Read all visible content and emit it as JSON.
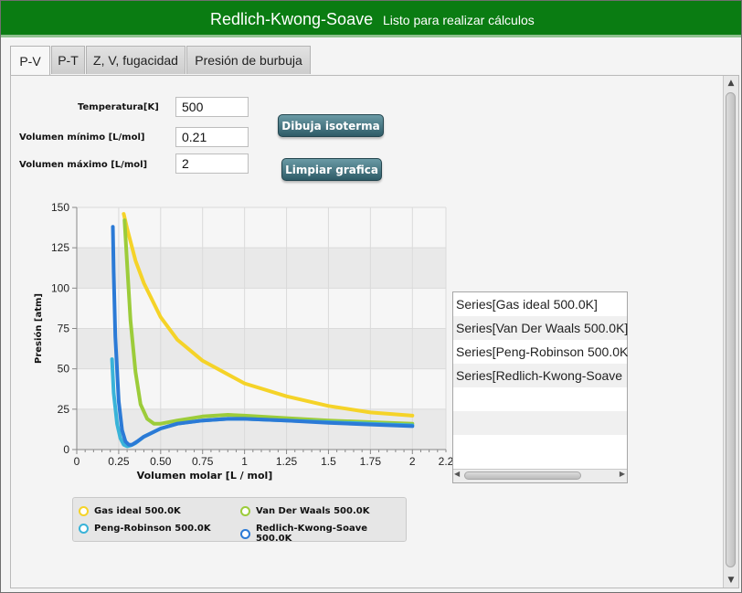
{
  "window": {
    "title": "Redlich-Kwong-Soave",
    "status": "Listo para realizar cálculos"
  },
  "tabs": [
    {
      "label": "P-V",
      "active": true
    },
    {
      "label": "P-T"
    },
    {
      "label": "Z, V, fugacidad"
    },
    {
      "label": "Presión de burbuja"
    }
  ],
  "form": {
    "temperature_label": "Temperatura[K]",
    "temperature_value": "500",
    "vmin_label": "Volumen mínimo [L/mol]",
    "vmin_value": "0.21",
    "vmax_label": "Volumen máximo [L/mol]",
    "vmax_value": "2",
    "draw_button": "Dibuja isoterma",
    "clear_button": "Limpiar grafica"
  },
  "series_list": [
    "Series[Gas ideal 500.0K]",
    "Series[Van Der Waals 500.0K]",
    "Series[Peng-Robinson 500.0K",
    "Series[Redlich-Kwong-Soave"
  ],
  "colors": {
    "ideal": "#f5d328",
    "vdw": "#9ccc3a",
    "pr": "#39b3d8",
    "rks": "#2b7ad6",
    "titlebar": "#0a7c12"
  },
  "chart_data": {
    "type": "line",
    "xlabel": "Volumen molar [L / mol]",
    "ylabel": "Presión [atm]",
    "xlim": [
      0,
      2.2
    ],
    "ylim": [
      0,
      150
    ],
    "xticks": [
      "0",
      "0.25",
      "0.50",
      "0.75",
      "1",
      "1.25",
      "1.5",
      "1.75",
      "2",
      "2.2"
    ],
    "xtick_values": [
      0,
      0.25,
      0.5,
      0.75,
      1,
      1.25,
      1.5,
      1.75,
      2,
      2.2
    ],
    "yticks": [
      "0",
      "25",
      "50",
      "75",
      "100",
      "125",
      "150"
    ],
    "ytick_values": [
      0,
      25,
      50,
      75,
      100,
      125,
      150
    ],
    "grid": true,
    "legend_position": "bottom",
    "series": [
      {
        "name": "Gas ideal 500.0K",
        "color": "#f5d328",
        "x": [
          0.28,
          0.3,
          0.35,
          0.4,
          0.5,
          0.6,
          0.75,
          1.0,
          1.25,
          1.5,
          1.75,
          2.0
        ],
        "y": [
          146,
          137,
          117,
          103,
          82,
          68,
          55,
          41,
          33,
          27,
          23,
          21
        ]
      },
      {
        "name": "Van Der Waals 500.0K",
        "color": "#9ccc3a",
        "x": [
          0.285,
          0.3,
          0.32,
          0.35,
          0.38,
          0.42,
          0.46,
          0.5,
          0.6,
          0.75,
          0.9,
          1.0,
          1.25,
          1.5,
          1.75,
          2.0
        ],
        "y": [
          142,
          115,
          80,
          48,
          28,
          19,
          16,
          16,
          18,
          20.5,
          21.5,
          21,
          19.5,
          18,
          17,
          16
        ]
      },
      {
        "name": "Peng-Robinson 500.0K",
        "color": "#39b3d8",
        "x": [
          0.21,
          0.22,
          0.24,
          0.26,
          0.28,
          0.3,
          0.32,
          0.35,
          0.4,
          0.5,
          0.6,
          0.75,
          0.9,
          1.0,
          1.25,
          1.5,
          1.75,
          2.0
        ],
        "y": [
          56,
          35,
          16,
          7,
          3,
          2,
          2.5,
          4,
          8,
          13,
          16,
          18,
          19,
          19,
          18,
          17,
          16,
          15
        ]
      },
      {
        "name": "Redlich-Kwong-Soave 500.0K",
        "color": "#2b7ad6",
        "x": [
          0.215,
          0.22,
          0.23,
          0.25,
          0.27,
          0.29,
          0.31,
          0.33,
          0.36,
          0.4,
          0.5,
          0.6,
          0.75,
          0.9,
          1.0,
          1.25,
          1.5,
          1.75,
          2.0
        ],
        "y": [
          138,
          110,
          70,
          30,
          12,
          5,
          3,
          3,
          5,
          8,
          13,
          16,
          18,
          19,
          19,
          18,
          16.5,
          15.5,
          14.5
        ]
      }
    ]
  }
}
